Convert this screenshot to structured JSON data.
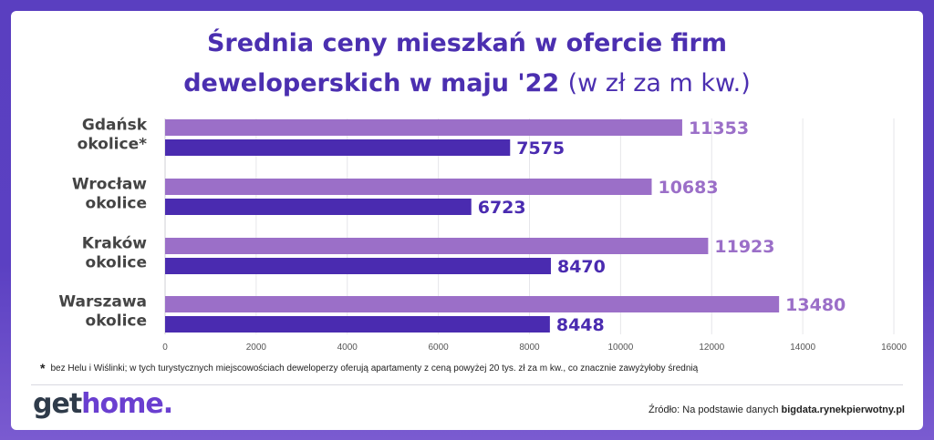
{
  "title": {
    "line1": "Średnia ceny mieszkań w ofercie firm",
    "line2_bold": "deweloperskich w maju '22",
    "line2_light": "(w zł za m kw.)"
  },
  "chart_data": {
    "type": "bar",
    "orientation": "horizontal",
    "categories": [
      [
        "Gdańsk",
        "okolice*"
      ],
      [
        "Wrocław",
        "okolice"
      ],
      [
        "Kraków",
        "okolice"
      ],
      [
        "Warszawa",
        "okolice"
      ]
    ],
    "series": [
      {
        "color": "#9b6fc8",
        "values": [
          11353,
          10683,
          11923,
          13480
        ]
      },
      {
        "color": "#4a2bb0",
        "values": [
          7575,
          6723,
          8470,
          8448
        ]
      }
    ],
    "xlim": [
      0,
      16000
    ],
    "xticks": [
      "0",
      "2000",
      "4000",
      "6000",
      "8000",
      "10000",
      "12000",
      "14000",
      "16000"
    ],
    "grid": true
  },
  "footnote": {
    "star": "*",
    "text": "bez Helu i Wiślinki; w tych turystycznych miejscowościach deweloperzy oferują apartamenty z ceną powyżej 20 tys. zł za m kw., co znacznie zawyżyłoby średnią"
  },
  "logo": {
    "get": "get",
    "home": "home."
  },
  "source": {
    "prefix": "Źródło: Na podstawie danych ",
    "site": "bigdata.rynekpierwotny.pl"
  }
}
